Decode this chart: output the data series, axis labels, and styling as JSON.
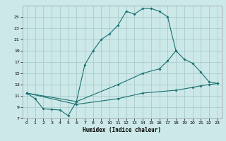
{
  "title": "",
  "xlabel": "Humidex (Indice chaleur)",
  "bg_color": "#cce8e8",
  "grid_color": "#aacccc",
  "line_color": "#1a7070",
  "xlim": [
    -0.5,
    23.5
  ],
  "ylim": [
    7,
    27
  ],
  "yticks": [
    7,
    9,
    11,
    13,
    15,
    17,
    19,
    21,
    23,
    25
  ],
  "xticks": [
    0,
    1,
    2,
    3,
    4,
    5,
    6,
    7,
    8,
    9,
    10,
    11,
    12,
    13,
    14,
    15,
    16,
    17,
    18,
    19,
    20,
    21,
    22,
    23
  ],
  "line1_x": [
    0,
    1,
    2,
    3,
    4,
    5,
    6,
    7,
    8,
    9,
    10,
    11,
    12,
    13,
    14,
    15,
    16,
    17,
    18
  ],
  "line1_y": [
    11.5,
    10.5,
    8.7,
    8.6,
    8.5,
    7.5,
    10.0,
    16.5,
    19.0,
    21.0,
    22.0,
    23.5,
    26.0,
    25.5,
    26.5,
    26.5,
    26.0,
    25.0,
    19.0
  ],
  "line2_x": [
    0,
    6,
    11,
    14,
    16,
    17,
    18,
    19,
    20,
    21,
    22,
    23
  ],
  "line2_y": [
    11.5,
    10.0,
    13.0,
    15.0,
    15.8,
    17.2,
    19.0,
    17.5,
    16.8,
    15.2,
    13.5,
    13.2
  ],
  "line3_x": [
    0,
    6,
    11,
    14,
    18,
    20,
    21,
    22,
    23
  ],
  "line3_y": [
    11.5,
    9.5,
    10.5,
    11.5,
    12.0,
    12.5,
    12.8,
    13.0,
    13.2
  ],
  "marker_size": 2.0,
  "line_width": 0.8,
  "tick_fontsize": 4.5,
  "xlabel_fontsize": 5.5
}
